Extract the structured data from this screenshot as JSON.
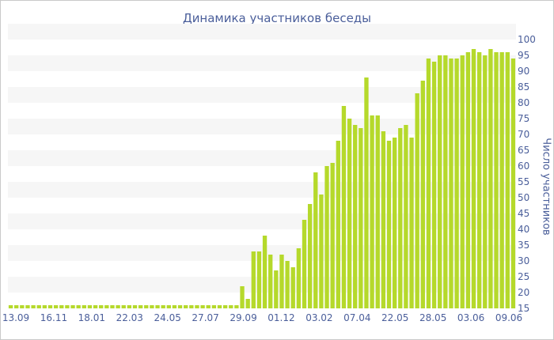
{
  "chart_data": {
    "type": "bar",
    "title": "Динамика участников беседы",
    "ylabel": "Число участников",
    "xlabel": "",
    "ylim": [
      15,
      100
    ],
    "ytick_step": 5,
    "y_axis_side": "right",
    "grid": "alternating horizontal bands",
    "bar_color": "#b5d92b",
    "band_color": "#f6f6f6",
    "text_color": "#4a5e9a",
    "x_tick_labels": [
      "13.09",
      "16.11",
      "18.01",
      "22.03",
      "24.05",
      "27.07",
      "29.09",
      "01.12",
      "03.02",
      "07.04",
      "22.05",
      "28.05",
      "03.06",
      "09.06"
    ],
    "values": [
      16,
      16,
      16,
      16,
      16,
      16,
      16,
      16,
      16,
      16,
      16,
      16,
      16,
      16,
      16,
      16,
      16,
      16,
      16,
      16,
      16,
      16,
      16,
      16,
      16,
      16,
      16,
      16,
      16,
      16,
      16,
      16,
      16,
      16,
      16,
      16,
      16,
      16,
      16,
      16,
      16,
      22,
      18,
      33,
      33,
      38,
      32,
      27,
      32,
      30,
      28,
      34,
      43,
      48,
      58,
      51,
      60,
      61,
      68,
      79,
      75,
      73,
      72,
      88,
      76,
      76,
      71,
      68,
      69,
      72,
      73,
      69,
      83,
      87,
      94,
      93,
      95,
      95,
      94,
      94,
      95,
      96,
      97,
      96,
      95,
      97,
      96,
      96,
      96,
      94
    ]
  }
}
